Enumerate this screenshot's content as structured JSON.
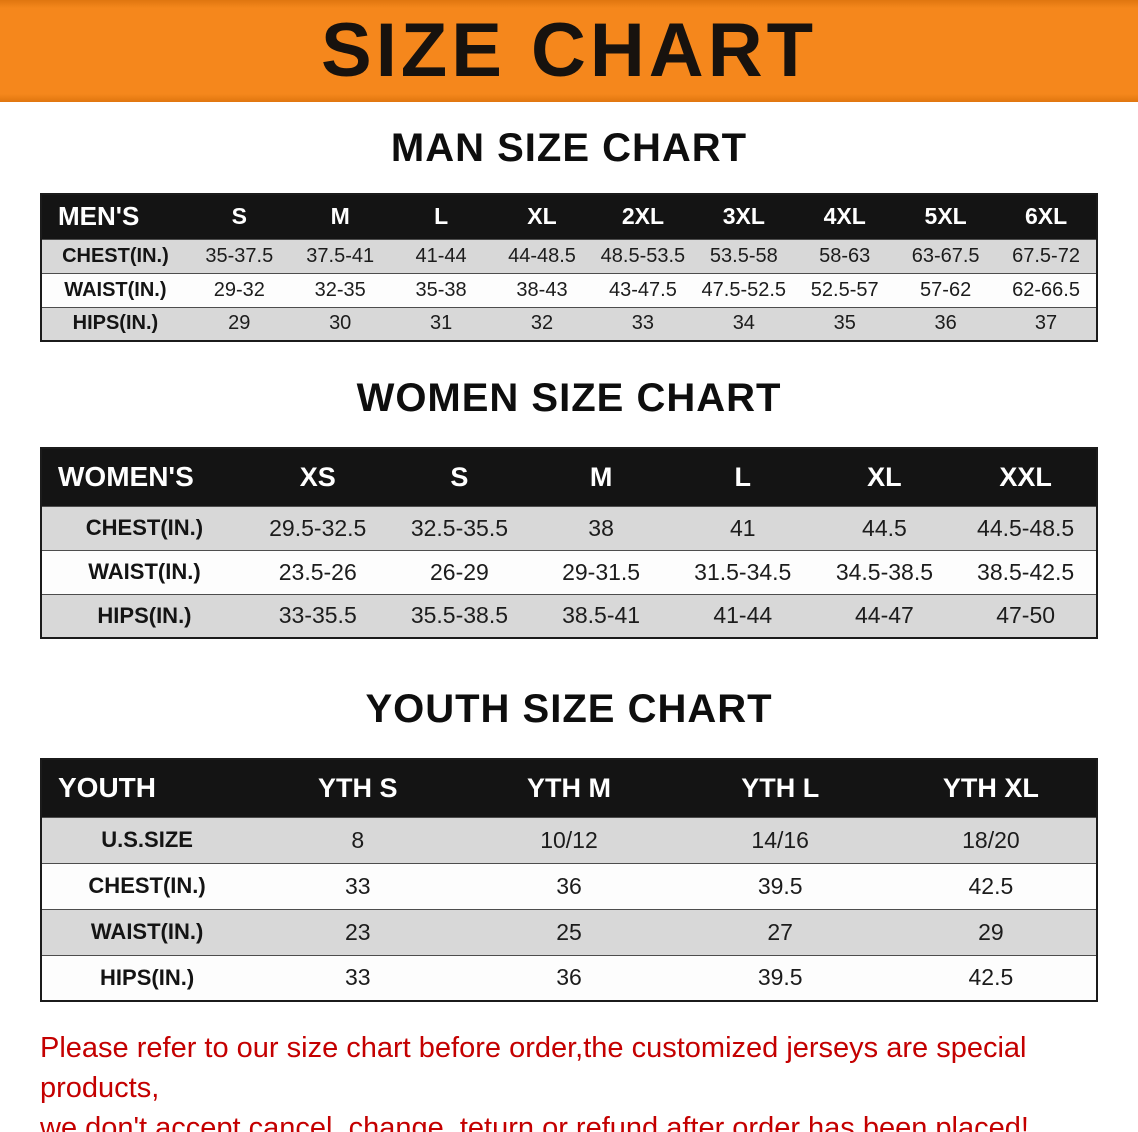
{
  "banner": {
    "title": "SIZE CHART",
    "bg_color": "#F5871C"
  },
  "sections": {
    "men": {
      "heading": "MAN SIZE CHART",
      "table": {
        "header": [
          "MEN'S",
          "S",
          "M",
          "L",
          "XL",
          "2XL",
          "3XL",
          "4XL",
          "5XL",
          "6XL"
        ],
        "rows": [
          {
            "label": "CHEST(IN.)",
            "values": [
              "35-37.5",
              "37.5-41",
              "41-44",
              "44-48.5",
              "48.5-53.5",
              "53.5-58",
              "58-63",
              "63-67.5",
              "67.5-72"
            ]
          },
          {
            "label": "WAIST(IN.)",
            "values": [
              "29-32",
              "32-35",
              "35-38",
              "38-43",
              "43-47.5",
              "47.5-52.5",
              "52.5-57",
              "57-62",
              "62-66.5"
            ]
          },
          {
            "label": "HIPS(IN.)",
            "values": [
              "29",
              "30",
              "31",
              "32",
              "33",
              "34",
              "35",
              "36",
              "37"
            ]
          }
        ]
      }
    },
    "women": {
      "heading": "WOMEN SIZE CHART",
      "table": {
        "header": [
          "WOMEN'S",
          "XS",
          "S",
          "M",
          "L",
          "XL",
          "XXL"
        ],
        "rows": [
          {
            "label": "CHEST(IN.)",
            "values": [
              "29.5-32.5",
              "32.5-35.5",
              "38",
              "41",
              "44.5",
              "44.5-48.5"
            ]
          },
          {
            "label": "WAIST(IN.)",
            "values": [
              "23.5-26",
              "26-29",
              "29-31.5",
              "31.5-34.5",
              "34.5-38.5",
              "38.5-42.5"
            ]
          },
          {
            "label": "HIPS(IN.)",
            "values": [
              "33-35.5",
              "35.5-38.5",
              "38.5-41",
              "41-44",
              "44-47",
              "47-50"
            ]
          }
        ]
      }
    },
    "youth": {
      "heading": "YOUTH SIZE CHART",
      "table": {
        "header": [
          "YOUTH",
          "YTH S",
          "YTH M",
          "YTH L",
          "YTH XL"
        ],
        "rows": [
          {
            "label": "U.S.SIZE",
            "values": [
              "8",
              "10/12",
              "14/16",
              "18/20"
            ]
          },
          {
            "label": "CHEST(IN.)",
            "values": [
              "33",
              "36",
              "39.5",
              "42.5"
            ]
          },
          {
            "label": "WAIST(IN.)",
            "values": [
              "23",
              "25",
              "27",
              "29"
            ]
          },
          {
            "label": "HIPS(IN.)",
            "values": [
              "33",
              "36",
              "39.5",
              "42.5"
            ]
          }
        ]
      }
    }
  },
  "disclaimer": {
    "line1": "Please refer to our size chart before order,the customized jerseys are special products,",
    "line2": "we don't accept cancel, change, teturn or refund after order has been placed!",
    "color": "#C40000"
  },
  "colors": {
    "banner_bg": "#F5871C",
    "table_header_bg": "#141414",
    "row_stripe_gray": "#D8D8D8",
    "disclaimer_red": "#C40000"
  }
}
